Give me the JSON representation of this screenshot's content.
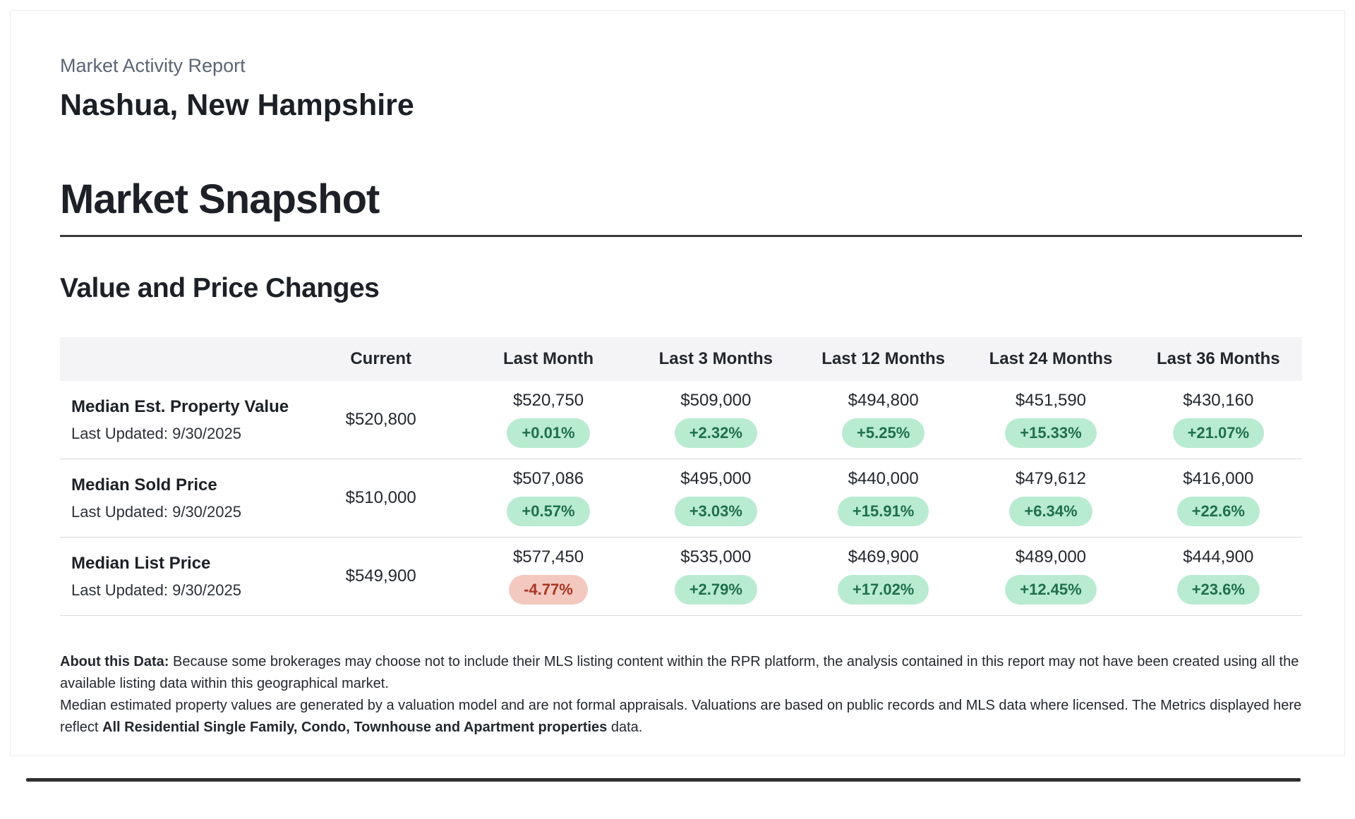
{
  "report": {
    "kicker": "Market Activity Report",
    "location": "Nashua, New Hampshire",
    "section_title": "Market Snapshot",
    "subsection_title": "Value and Price Changes"
  },
  "table": {
    "columns": [
      "",
      "Current",
      "Last Month",
      "Last 3 Months",
      "Last 12 Months",
      "Last 24 Months",
      "Last 36 Months"
    ],
    "rows": [
      {
        "label": "Median Est. Property Value",
        "last_updated": "Last Updated: 9/30/2025",
        "current": "$520,800",
        "cells": [
          {
            "value": "$520,750",
            "change": "+0.01%"
          },
          {
            "value": "$509,000",
            "change": "+2.32%"
          },
          {
            "value": "$494,800",
            "change": "+5.25%"
          },
          {
            "value": "$451,590",
            "change": "+15.33%"
          },
          {
            "value": "$430,160",
            "change": "+21.07%"
          }
        ]
      },
      {
        "label": "Median Sold Price",
        "last_updated": "Last Updated: 9/30/2025",
        "current": "$510,000",
        "cells": [
          {
            "value": "$507,086",
            "change": "+0.57%"
          },
          {
            "value": "$495,000",
            "change": "+3.03%"
          },
          {
            "value": "$440,000",
            "change": "+15.91%"
          },
          {
            "value": "$479,612",
            "change": "+6.34%"
          },
          {
            "value": "$416,000",
            "change": "+22.6%"
          }
        ]
      },
      {
        "label": "Median List Price",
        "last_updated": "Last Updated: 9/30/2025",
        "current": "$549,900",
        "cells": [
          {
            "value": "$577,450",
            "change": "-4.77%"
          },
          {
            "value": "$535,000",
            "change": "+2.79%"
          },
          {
            "value": "$469,900",
            "change": "+17.02%"
          },
          {
            "value": "$489,000",
            "change": "+12.45%"
          },
          {
            "value": "$444,900",
            "change": "+23.6%"
          }
        ]
      }
    ]
  },
  "about": {
    "label": "About this Data:",
    "text1": " Because some brokerages may choose not to include their MLS listing content within the RPR platform, the analysis contained in this report may not have been created using all the available listing data within this geographical market.",
    "text2_lead": "Median estimated property values are generated by a valuation model and are not formal appraisals. Valuations are based on public records and MLS data where licensed. The Metrics displayed here reflect ",
    "text2_bold": "All Residential Single Family, Condo, Townhouse and Apartment properties",
    "text2_tail": " data."
  },
  "colors": {
    "positive_bg": "#b9ebd1",
    "positive_text": "#1e7048",
    "negative_bg": "#f3c9bf",
    "negative_text": "#a93423",
    "header_bg": "#f4f4f6"
  }
}
